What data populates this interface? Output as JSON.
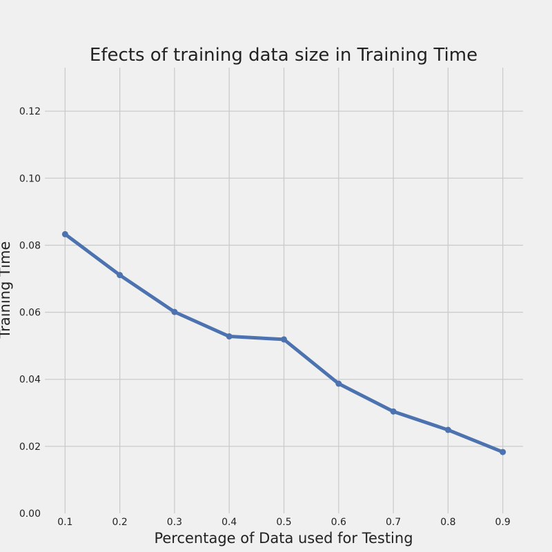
{
  "chart_data": {
    "type": "line",
    "title": "Efects of training data size in Training Time",
    "xlabel": "Percentage of Data used for Testing",
    "ylabel": "Training Time",
    "x": [
      0.1,
      0.2,
      0.3,
      0.4,
      0.5,
      0.6,
      0.7,
      0.8,
      0.9
    ],
    "series": [
      {
        "values": [
          0.0833,
          0.0711,
          0.0601,
          0.0528,
          0.0519,
          0.0387,
          0.0304,
          0.0249,
          0.0183
        ],
        "color": "#4c72b0"
      }
    ],
    "x_ticks": [
      "0.1",
      "0.2",
      "0.3",
      "0.4",
      "0.5",
      "0.6",
      "0.7",
      "0.8",
      "0.9"
    ],
    "y_ticks": [
      "0.00",
      "0.02",
      "0.04",
      "0.06",
      "0.08",
      "0.10",
      "0.12"
    ],
    "xlim": [
      0.063,
      0.937
    ],
    "ylim": [
      0,
      0.133
    ],
    "grid": true,
    "legend": false,
    "colors": {
      "background": "#f0f0f0",
      "grid": "#cbcbcb",
      "text": "#222222"
    }
  }
}
